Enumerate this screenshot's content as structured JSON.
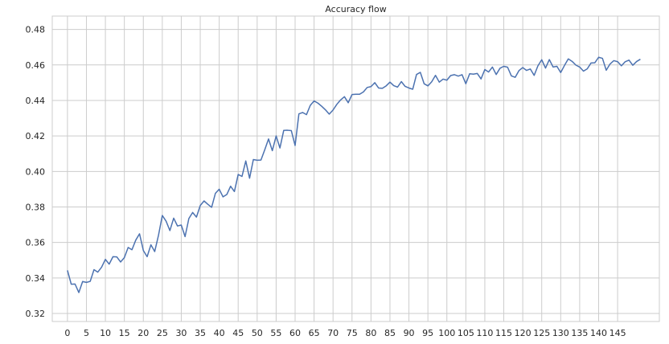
{
  "chart_data": {
    "type": "line",
    "title": "Accuracy flow",
    "xlabel": "",
    "ylabel": "",
    "xlim": [
      -4,
      156
    ],
    "ylim": [
      0.3155,
      0.4875
    ],
    "grid": true,
    "x_ticks": [
      0,
      5,
      10,
      15,
      20,
      25,
      30,
      35,
      40,
      45,
      50,
      55,
      60,
      65,
      70,
      75,
      80,
      85,
      90,
      95,
      100,
      105,
      110,
      115,
      120,
      125,
      130,
      135,
      140,
      145
    ],
    "y_ticks": [
      0.32,
      0.34,
      0.36,
      0.38,
      0.4,
      0.42,
      0.44,
      0.46,
      0.48
    ],
    "y_tick_labels": [
      "0.32",
      "0.34",
      "0.36",
      "0.38",
      "0.40",
      "0.42",
      "0.44",
      "0.46",
      "0.48"
    ],
    "series": [
      {
        "color": "#4c72b0",
        "values": [
          0.3443,
          0.3365,
          0.3366,
          0.3318,
          0.338,
          0.3375,
          0.3381,
          0.3447,
          0.3433,
          0.3461,
          0.3505,
          0.3478,
          0.352,
          0.3519,
          0.349,
          0.3515,
          0.3572,
          0.3559,
          0.3613,
          0.3649,
          0.3555,
          0.352,
          0.3587,
          0.3549,
          0.3641,
          0.3752,
          0.372,
          0.3667,
          0.3737,
          0.3693,
          0.3698,
          0.3633,
          0.3735,
          0.3769,
          0.3743,
          0.3808,
          0.3834,
          0.3815,
          0.3798,
          0.3877,
          0.39,
          0.3857,
          0.387,
          0.3917,
          0.3887,
          0.3983,
          0.3972,
          0.4059,
          0.3962,
          0.4067,
          0.4063,
          0.4064,
          0.4122,
          0.4183,
          0.4117,
          0.42,
          0.4132,
          0.4231,
          0.4232,
          0.423,
          0.4146,
          0.4324,
          0.4332,
          0.432,
          0.4372,
          0.4397,
          0.4385,
          0.4367,
          0.4347,
          0.4323,
          0.4346,
          0.4378,
          0.4403,
          0.4421,
          0.4387,
          0.4433,
          0.4435,
          0.4435,
          0.4448,
          0.4473,
          0.4478,
          0.45,
          0.447,
          0.4468,
          0.4482,
          0.4503,
          0.4483,
          0.4475,
          0.4506,
          0.4479,
          0.447,
          0.4463,
          0.4546,
          0.4558,
          0.4494,
          0.4482,
          0.4505,
          0.4541,
          0.4503,
          0.452,
          0.4514,
          0.454,
          0.4545,
          0.4537,
          0.4545,
          0.4494,
          0.455,
          0.4548,
          0.4552,
          0.4521,
          0.4574,
          0.456,
          0.4588,
          0.4546,
          0.4581,
          0.4592,
          0.4587,
          0.4538,
          0.453,
          0.4568,
          0.4585,
          0.4569,
          0.4577,
          0.4541,
          0.4595,
          0.4629,
          0.4582,
          0.463,
          0.4588,
          0.4592,
          0.4557,
          0.4597,
          0.4634,
          0.462,
          0.4599,
          0.4588,
          0.4565,
          0.4578,
          0.4611,
          0.4612,
          0.4643,
          0.4637,
          0.457,
          0.4605,
          0.4624,
          0.4618,
          0.4595,
          0.4618,
          0.4627,
          0.4598,
          0.4619,
          0.4632
        ]
      }
    ]
  }
}
